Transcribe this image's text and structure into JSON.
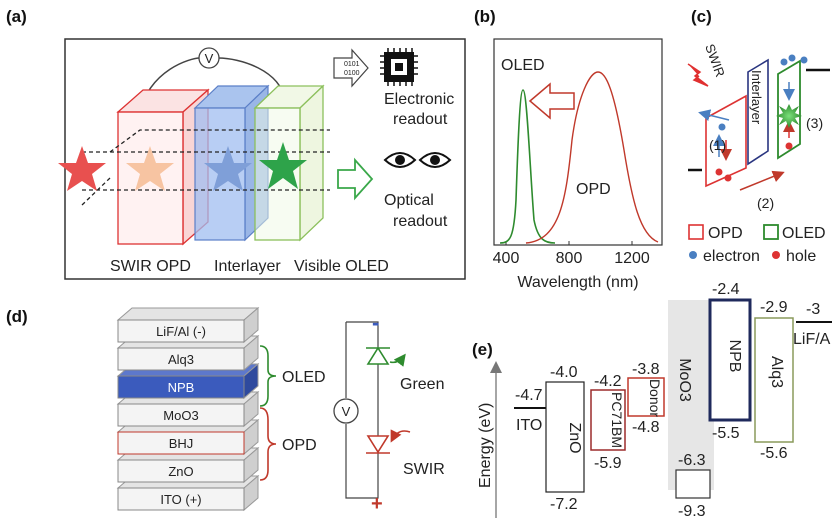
{
  "panels": {
    "a": "(a)",
    "b": "(b)",
    "c": "(c)",
    "d": "(d)",
    "e": "(e)"
  },
  "a": {
    "voltmeter": "V",
    "binary_top": "0101",
    "binary_bottom": "0100",
    "electronic_readout": [
      "Electronic",
      "readout"
    ],
    "optical_readout": [
      "Optical",
      "readout"
    ],
    "labels": {
      "opd": "SWIR OPD",
      "interlayer": "Interlayer",
      "oled": "Visible OLED"
    }
  },
  "b": {
    "oled_label": "OLED",
    "opd_label": "OPD",
    "xlabel": "Wavelength (nm)",
    "xticks": [
      "400",
      "800",
      "1200"
    ],
    "colors": {
      "oled": "#2e8b2e",
      "opd": "#c0392b"
    }
  },
  "c": {
    "swir": "SWIR",
    "interlayer": "Interlayer",
    "step1": "(1)",
    "step2": "(2)",
    "step3": "(3)",
    "legend": {
      "opd": "OPD",
      "oled": "OLED",
      "electron": "electron",
      "hole": "hole"
    }
  },
  "d": {
    "layers": [
      "LiF/Al (-)",
      "Alq3",
      "NPB",
      "MoO3",
      "BHJ",
      "ZnO",
      "ITO (+)"
    ],
    "oled_brace": "OLED",
    "opd_brace": "OPD",
    "voltmeter": "V",
    "green": "Green",
    "swir": "SWIR",
    "minus": "-",
    "plus": "+",
    "colors": {
      "npb": "#3b5bbd",
      "brace": "#2e8b2e",
      "brace_opd": "#c0392b"
    }
  },
  "e": {
    "ylabel": "Energy (eV)",
    "ito": {
      "name": "ITO",
      "level": "-4.7"
    },
    "zno": {
      "name": "ZnO",
      "top": "-4.0",
      "bottom": "-7.2"
    },
    "pcbm": {
      "name": "PC71BM",
      "top": "-4.2",
      "bottom": "-5.9"
    },
    "donor": {
      "name": "Donor",
      "top": "-3.8",
      "bottom": "-4.8"
    },
    "moo3": {
      "name": "MoO3",
      "top": "-6.3",
      "bottom": "-9.3"
    },
    "npb": {
      "name": "NPB",
      "top": "-2.4",
      "bottom": "-5.5"
    },
    "alq3": {
      "name": "Alq3",
      "top": "-2.9",
      "bottom": "-5.6"
    },
    "lif": {
      "name": "LiF/A",
      "level": "-3"
    }
  }
}
